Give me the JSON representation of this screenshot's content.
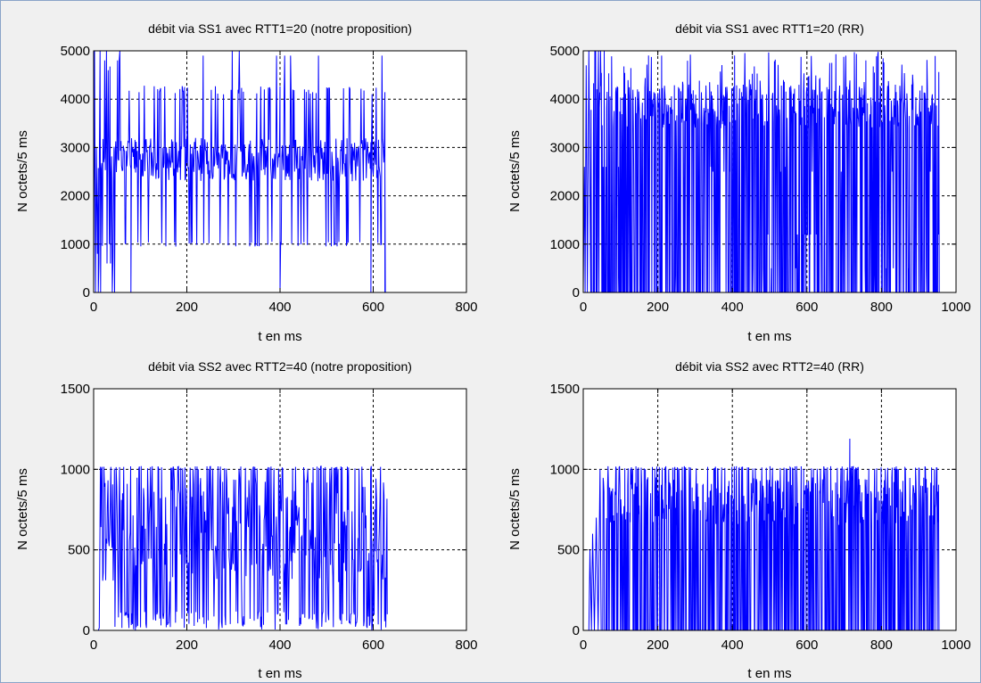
{
  "figure": {
    "background_color": "#f0f0f0",
    "axes_background": "#ffffff",
    "line_color": "#0000ff",
    "grid_color": "#000000"
  },
  "chart_data": [
    {
      "type": "line",
      "title": "débit via SS1 avec RTT1=20 (notre proposition)",
      "xlabel": "t en ms",
      "ylabel": "N octets/5 ms",
      "xlim": [
        0,
        800
      ],
      "ylim": [
        0,
        5000
      ],
      "xticks": [
        0,
        200,
        400,
        600,
        800
      ],
      "yticks": [
        0,
        1000,
        2000,
        3000,
        4000,
        5000
      ],
      "grid": true,
      "series": [
        {
          "x_range": [
            0,
            625
          ],
          "typical_low": 1000,
          "typical_mid": 2700,
          "typical_high": 4100,
          "peak": 5000,
          "dips_to_zero_at": [
            10,
            80,
            400,
            595,
            625
          ]
        }
      ]
    },
    {
      "type": "line",
      "title": "débit via SS1 avec RTT1=20 (RR)",
      "xlabel": "t en ms",
      "ylabel": "N octets/5 ms",
      "xlim": [
        0,
        1000
      ],
      "ylim": [
        0,
        5000
      ],
      "xticks": [
        0,
        200,
        400,
        600,
        800,
        1000
      ],
      "yticks": [
        0,
        1000,
        2000,
        3000,
        4000,
        5000
      ],
      "grid": true,
      "series": [
        {
          "x_range": [
            0,
            955
          ],
          "typical_low": 0,
          "typical_high": 4200,
          "peak": 5000,
          "occasional_values": [
            500,
            1200,
            2500
          ]
        }
      ]
    },
    {
      "type": "line",
      "title": "débit via SS2 avec RTT2=40 (notre proposition)",
      "xlabel": "t en ms",
      "ylabel": "N octets/5 ms",
      "xlim": [
        0,
        800
      ],
      "ylim": [
        0,
        1500
      ],
      "xticks": [
        0,
        200,
        400,
        600,
        800
      ],
      "yticks": [
        0,
        500,
        1000,
        1500
      ],
      "grid": true,
      "series": [
        {
          "x_range": [
            10,
            630
          ],
          "typical_low": 0,
          "typical_mid": 600,
          "typical_high": 1020,
          "peak": 1020
        }
      ]
    },
    {
      "type": "line",
      "title": "débit via SS2 avec RTT2=40 (RR)",
      "xlabel": "t en ms",
      "ylabel": "N octets/5 ms",
      "xlim": [
        0,
        1000
      ],
      "ylim": [
        0,
        1500
      ],
      "xticks": [
        0,
        200,
        400,
        600,
        800,
        1000
      ],
      "yticks": [
        0,
        500,
        1000,
        1500
      ],
      "grid": true,
      "series": [
        {
          "x_range": [
            15,
            955
          ],
          "typical_low": 0,
          "typical_high": 1020,
          "peak": 1190,
          "peak_at": 715
        }
      ]
    }
  ]
}
